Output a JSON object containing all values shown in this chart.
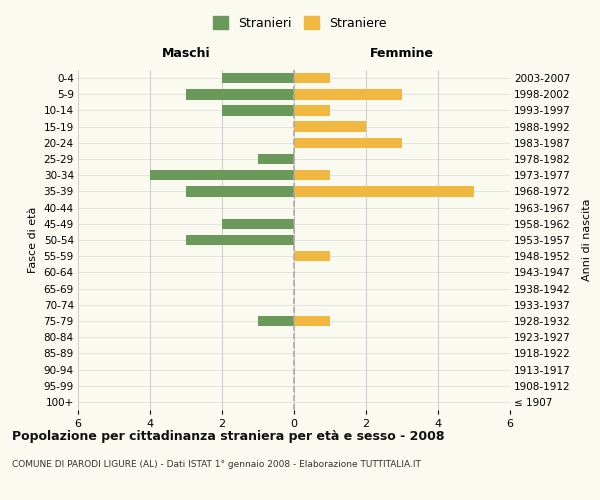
{
  "age_groups": [
    "100+",
    "95-99",
    "90-94",
    "85-89",
    "80-84",
    "75-79",
    "70-74",
    "65-69",
    "60-64",
    "55-59",
    "50-54",
    "45-49",
    "40-44",
    "35-39",
    "30-34",
    "25-29",
    "20-24",
    "15-19",
    "10-14",
    "5-9",
    "0-4"
  ],
  "birth_years": [
    "≤ 1907",
    "1908-1912",
    "1913-1917",
    "1918-1922",
    "1923-1927",
    "1928-1932",
    "1933-1937",
    "1938-1942",
    "1943-1947",
    "1948-1952",
    "1953-1957",
    "1958-1962",
    "1963-1967",
    "1968-1972",
    "1973-1977",
    "1978-1982",
    "1983-1987",
    "1988-1992",
    "1993-1997",
    "1998-2002",
    "2003-2007"
  ],
  "maschi": [
    0,
    0,
    0,
    0,
    0,
    1,
    0,
    0,
    0,
    0,
    3,
    2,
    0,
    3,
    4,
    1,
    0,
    0,
    2,
    3,
    2
  ],
  "femmine": [
    0,
    0,
    0,
    0,
    0,
    1,
    0,
    0,
    0,
    1,
    0,
    0,
    0,
    5,
    1,
    0,
    3,
    2,
    1,
    3,
    1
  ],
  "color_maschi": "#6a9a5a",
  "color_femmine": "#f0b840",
  "title": "Popolazione per cittadinanza straniera per età e sesso - 2008",
  "subtitle": "COMUNE DI PARODI LIGURE (AL) - Dati ISTAT 1° gennaio 2008 - Elaborazione TUTTITALIA.IT",
  "ylabel_left": "Fasce di età",
  "ylabel_right": "Anni di nascita",
  "header_left": "Maschi",
  "header_right": "Femmine",
  "legend_maschi": "Stranieri",
  "legend_femmine": "Straniere",
  "xlim": 6,
  "background_color": "#fafaf0",
  "grid_color": "#cccccc",
  "dashed_line_color": "#aaaaaa"
}
